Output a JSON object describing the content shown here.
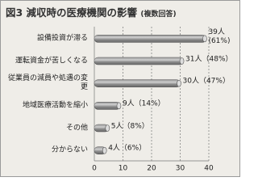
{
  "chart_data": {
    "type": "bar",
    "orientation": "horizontal",
    "title": "図3 減収時の医療機関の影響",
    "subtitle": "(複数回答)",
    "categories": [
      "設備投資が滞る",
      "運転資金が苦しくなる",
      "従業員の減員や処遇の変更",
      "地域医療活動を縮小",
      "その他",
      "分からない"
    ],
    "values": [
      39,
      31,
      30,
      9,
      5,
      4
    ],
    "value_labels": [
      "39人 (61%)",
      "31人（48%）",
      "30人（47%）",
      "9人（14%）",
      "5人（8%）",
      "4人（6%）"
    ],
    "color": "#8a8a8a",
    "xlim": [
      0,
      40
    ],
    "xticks": [
      0,
      10,
      20,
      30,
      40
    ],
    "grid": true
  }
}
